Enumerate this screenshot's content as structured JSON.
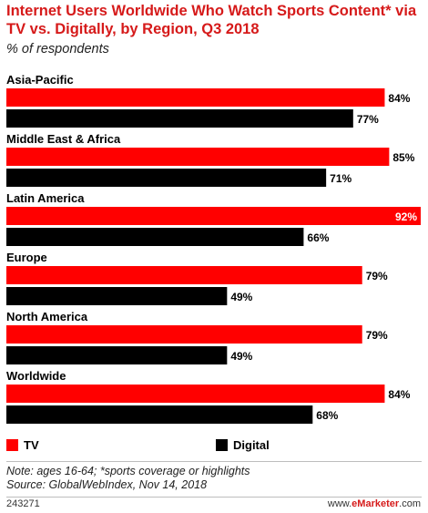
{
  "chart_data": {
    "type": "bar",
    "orientation": "horizontal",
    "title": "Internet Users Worldwide Who Watch Sports Content* via TV vs. Digitally, by Region, Q3 2018",
    "subtitle": "% of respondents",
    "categories": [
      "Asia-Pacific",
      "Middle East & Africa",
      "Latin America",
      "Europe",
      "North America",
      "Worldwide"
    ],
    "series": [
      {
        "name": "TV",
        "color": "#ff0000",
        "values": [
          84,
          85,
          92,
          79,
          79,
          84
        ]
      },
      {
        "name": "Digital",
        "color": "#000000",
        "values": [
          77,
          71,
          66,
          49,
          49,
          68
        ]
      }
    ],
    "value_suffix": "%",
    "xlim": [
      0,
      92
    ],
    "grid": false,
    "legend_position": "bottom"
  },
  "footer": {
    "note": "Note: ages 16-64; *sports coverage or highlights",
    "source": "Source: GlobalWebIndex, Nov 14, 2018",
    "chart_id": "243271",
    "brand_prefix": "www.",
    "brand_name": "eMarketer",
    "brand_suffix": ".com"
  }
}
